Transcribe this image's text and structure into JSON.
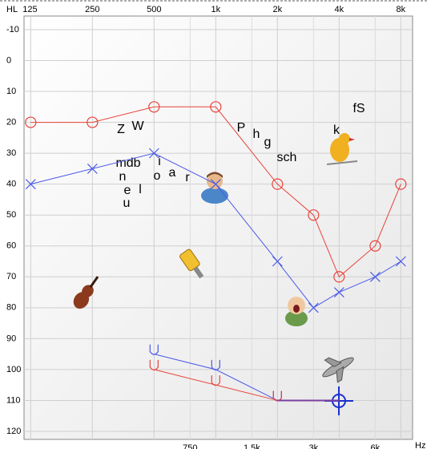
{
  "chart_data": {
    "type": "line",
    "x_unit_label": "HL",
    "x_axis_label": "Hz",
    "xscale": "log",
    "xlim": [
      116,
      9130
    ],
    "xticks": [
      125,
      250,
      500,
      {
        "value": 1000,
        "label": "1k"
      },
      {
        "value": 2000,
        "label": "2k"
      },
      {
        "value": 4000,
        "label": "4k"
      },
      {
        "value": 8000,
        "label": "8k"
      }
    ],
    "minor_xticks": [
      750,
      {
        "value": 1500,
        "label": "1.5k"
      },
      {
        "value": 3000,
        "label": "3k"
      },
      {
        "value": 6000,
        "label": "6k"
      }
    ],
    "ylim": [
      -14.4,
      122.6
    ],
    "y_inverted": true,
    "yticks": [
      -10,
      0,
      10,
      20,
      30,
      40,
      50,
      60,
      70,
      80,
      90,
      100,
      110,
      120
    ],
    "grid": true,
    "series": [
      {
        "color": "#e8433a",
        "marker": "circle",
        "x": [
          125,
          250,
          500,
          1000,
          2000,
          3000,
          4000,
          6000,
          8000
        ],
        "values": [
          20,
          20,
          15,
          15,
          40,
          50,
          70,
          60,
          40
        ]
      },
      {
        "color": "#4a5ae8",
        "marker": "cross",
        "x": [
          125,
          250,
          500,
          1000,
          2000,
          3000,
          4000,
          6000,
          8000
        ],
        "values": [
          40,
          35,
          30,
          40,
          65,
          80,
          75,
          70,
          65
        ]
      },
      {
        "color": "#4a5ae8",
        "marker": "u",
        "x": [
          500,
          1000,
          2000
        ],
        "values": [
          95,
          100,
          110
        ]
      },
      {
        "color": "#e8433a",
        "marker": "u",
        "x": [
          500,
          1000,
          2000
        ],
        "values": [
          100,
          105,
          110
        ]
      },
      {
        "color": "#7b3fa0",
        "marker": "none",
        "x": [
          2000,
          4000
        ],
        "values": [
          110,
          110
        ]
      }
    ],
    "speech_sounds": [
      "Z",
      "W",
      "mdb",
      "n",
      "e",
      "l",
      "u",
      "i",
      "o",
      "a",
      "r",
      "P",
      "h",
      "g",
      "sch",
      "fS",
      "k"
    ]
  }
}
